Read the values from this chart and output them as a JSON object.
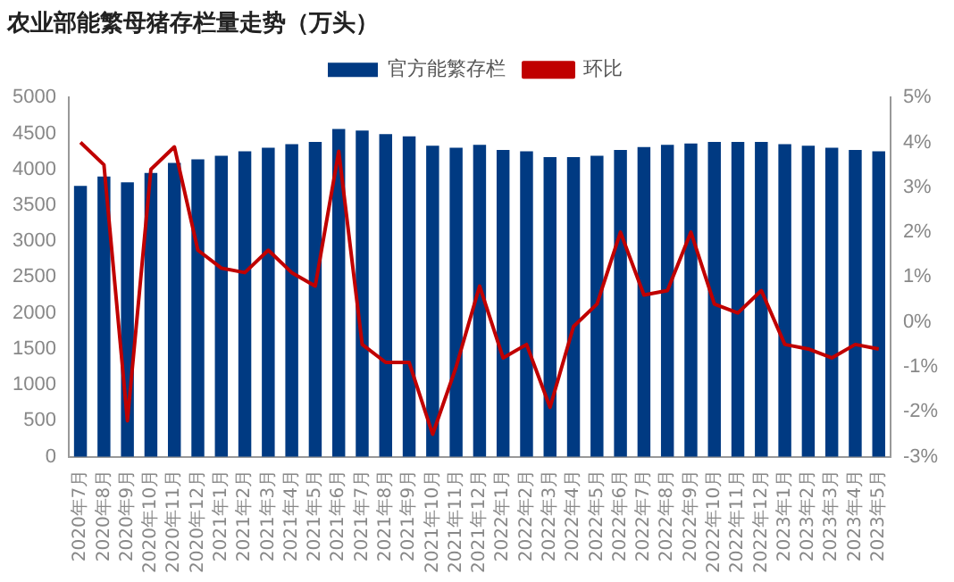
{
  "chart_data": {
    "type": "bar",
    "title": "农业部能繁母猪存栏量走势（万头）",
    "categories": [
      "2020年7月",
      "2020年8月",
      "2020年9月",
      "2020年10月",
      "2020年11月",
      "2020年12月",
      "2021年1月",
      "2021年2月",
      "2021年3月",
      "2021年4月",
      "2021年5月",
      "2021年6月",
      "2021年7月",
      "2021年8月",
      "2021年9月",
      "2021年10月",
      "2021年11月",
      "2021年12月",
      "2022年1月",
      "2022年2月",
      "2022年3月",
      "2022年4月",
      "2022年5月",
      "2022年6月",
      "2022年7月",
      "2022年8月",
      "2022年9月",
      "2022年10月",
      "2022年11月",
      "2022年12月",
      "2023年1月",
      "2023年2月",
      "2023年3月",
      "2023年4月",
      "2023年5月"
    ],
    "series": [
      {
        "name": "官方能繁存栏",
        "color": "#003a82",
        "values": [
          3770,
          3900,
          3820,
          3950,
          4090,
          4140,
          4190,
          4250,
          4300,
          4350,
          4380,
          4560,
          4540,
          4490,
          4460,
          4330,
          4300,
          4340,
          4270,
          4250,
          4170,
          4170,
          4190,
          4270,
          4310,
          4340,
          4360,
          4380,
          4380,
          4380,
          4350,
          4330,
          4300,
          4270,
          4250
        ]
      },
      {
        "name": "环比",
        "type": "line",
        "axis": "y2",
        "color": "#c00000",
        "values": [
          4.0,
          3.5,
          -2.2,
          3.4,
          3.9,
          1.6,
          1.2,
          1.1,
          1.6,
          1.1,
          0.8,
          3.8,
          -0.5,
          -0.9,
          -0.9,
          -2.5,
          -1.0,
          0.8,
          -0.8,
          -0.5,
          -1.9,
          -0.1,
          0.4,
          2.0,
          0.6,
          0.7,
          2.0,
          0.4,
          0.2,
          0.7,
          -0.5,
          -0.6,
          -0.8,
          -0.5,
          -0.6
        ]
      }
    ],
    "ylim": [
      0,
      5000
    ],
    "yticks": [
      0,
      500,
      1000,
      1500,
      2000,
      2500,
      3000,
      3500,
      4000,
      4500,
      5000
    ],
    "y2lim": [
      -3,
      5
    ],
    "y2ticks": [
      {
        "value": -3,
        "label": "-3%"
      },
      {
        "value": -2,
        "label": "-2%"
      },
      {
        "value": -1,
        "label": "-1%"
      },
      {
        "value": 0,
        "label": "0%"
      },
      {
        "value": 1,
        "label": "1%"
      },
      {
        "value": 2,
        "label": "2%"
      },
      {
        "value": 3,
        "label": "3%"
      },
      {
        "value": 4,
        "label": "4%"
      },
      {
        "value": 5,
        "label": "5%"
      }
    ],
    "grid": false,
    "legend": "top",
    "marker": "none"
  }
}
